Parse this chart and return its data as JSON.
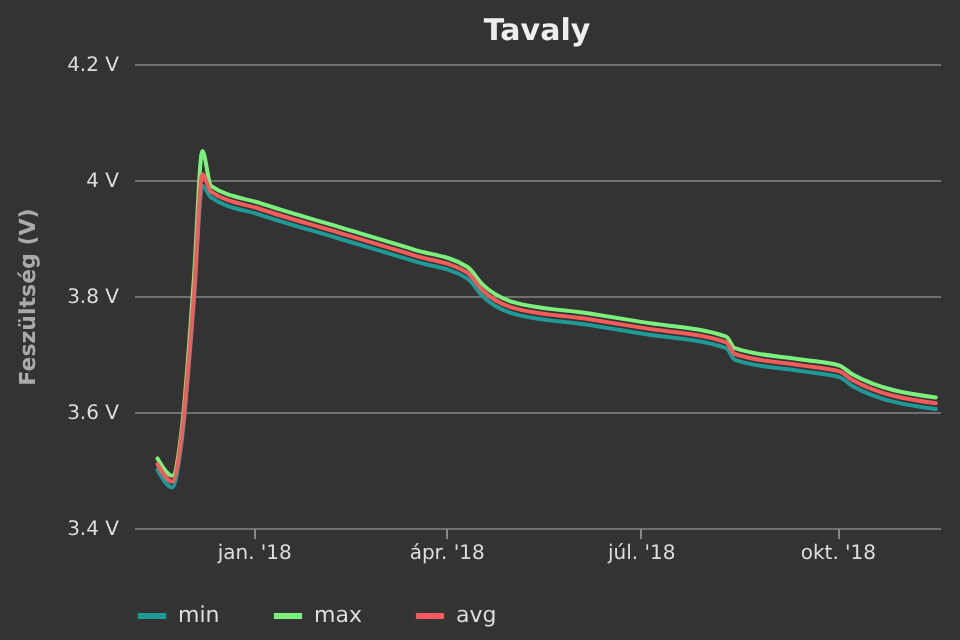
{
  "chart_data": {
    "type": "line",
    "title": "Tavaly",
    "ylabel": "Feszültség (V)",
    "x": [
      "2017-11-17",
      "2017-11-24",
      "2017-11-28",
      "2017-12-04",
      "2017-12-08",
      "2017-12-12",
      "2018-01-04",
      "2018-02-09",
      "2018-03-17",
      "2018-04-11",
      "2018-04-18",
      "2018-05-02",
      "2018-06-07",
      "2018-07-02",
      "2018-08-10",
      "2018-08-14",
      "2018-09-15",
      "2018-10-02",
      "2018-10-08",
      "2018-11-16"
    ],
    "series": [
      {
        "name": "min",
        "color": "#1f9a96",
        "values": [
          3.5,
          3.47,
          3.54,
          3.79,
          3.99,
          3.97,
          3.94,
          3.9,
          3.86,
          3.83,
          3.8,
          3.77,
          3.75,
          3.735,
          3.71,
          3.69,
          3.67,
          3.66,
          3.645,
          3.605
        ]
      },
      {
        "name": "max",
        "color": "#7cf07c",
        "values": [
          3.52,
          3.49,
          3.56,
          3.83,
          4.05,
          3.99,
          3.96,
          3.92,
          3.88,
          3.85,
          3.82,
          3.79,
          3.77,
          3.755,
          3.73,
          3.71,
          3.69,
          3.68,
          3.665,
          3.625
        ]
      },
      {
        "name": "avg",
        "color": "#f45b5b",
        "values": [
          3.51,
          3.48,
          3.55,
          3.8,
          4.01,
          3.98,
          3.95,
          3.91,
          3.87,
          3.84,
          3.81,
          3.78,
          3.76,
          3.745,
          3.72,
          3.7,
          3.68,
          3.67,
          3.655,
          3.615
        ]
      }
    ],
    "xlim": [
      "2017-11-06",
      "2018-11-18"
    ],
    "xticks": [
      {
        "value": "2018-01-01",
        "label": "jan. '18"
      },
      {
        "value": "2018-04-01",
        "label": "ápr. '18"
      },
      {
        "value": "2018-07-01",
        "label": "júl. '18"
      },
      {
        "value": "2018-10-01",
        "label": "okt. '18"
      }
    ],
    "ylim": [
      3.4,
      4.2
    ],
    "yticks": [
      {
        "value": 3.4,
        "label": "3.4 V"
      },
      {
        "value": 3.6,
        "label": "3.6 V"
      },
      {
        "value": 3.8,
        "label": "3.8 V"
      },
      {
        "value": 4.0,
        "label": "4 V"
      },
      {
        "value": 4.2,
        "label": "4.2 V"
      }
    ],
    "grid": "y",
    "legend": "bottom",
    "line_style": "solid"
  }
}
